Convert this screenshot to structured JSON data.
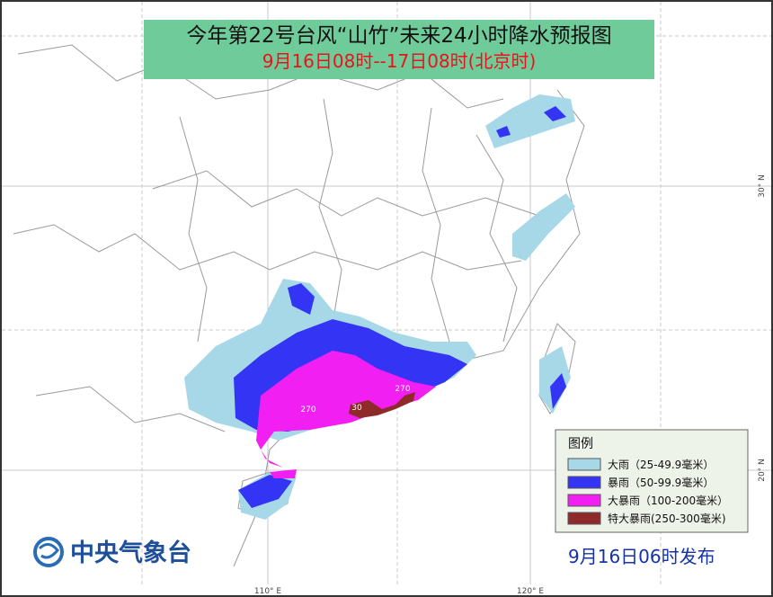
{
  "header": {
    "title": "今年第22号台风“山竹”未来24小时降水预报图",
    "subtitle": "9月16日08时--17日08时(北京时)"
  },
  "map": {
    "grid_labels": [
      "110° E",
      "120° E",
      "30° N",
      "20° N"
    ],
    "contour_labels": [
      "270",
      "30",
      "270"
    ]
  },
  "legend": {
    "title": "图例",
    "items": [
      {
        "label": "大雨（25-49.9毫米）",
        "color": "#a6d8e8"
      },
      {
        "label": "暴雨（50-99.9毫米）",
        "color": "#3434f4"
      },
      {
        "label": "大暴雨（100-200毫米）",
        "color": "#f21ff2"
      },
      {
        "label": "特大暴雨(250-300毫米)",
        "color": "#8e2a2a"
      }
    ]
  },
  "footer": {
    "agency": "中央气象台",
    "issued": "9月16日06时发布"
  }
}
